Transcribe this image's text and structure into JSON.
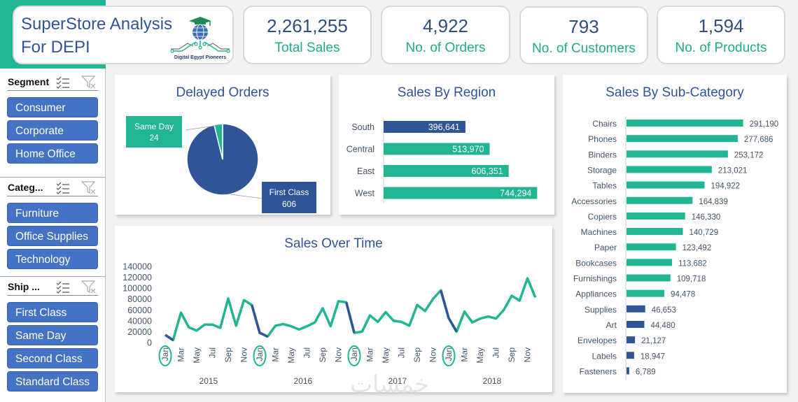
{
  "header": {
    "title_line1": "SuperStore Analysis",
    "title_line2": "For DEPI",
    "logo_caption": "Digital Egypt Pioneers",
    "logo_icon": "graduation-globe-circuit-logo"
  },
  "kpis": [
    {
      "value": "2,261,255",
      "label": "Total Sales"
    },
    {
      "value": "4,922",
      "label": "No. of Orders"
    },
    {
      "value": "793",
      "label": "No. of Customers"
    },
    {
      "value": "1,594",
      "label": "No. of Products"
    }
  ],
  "slicers": [
    {
      "title": "Segment",
      "items": [
        "Consumer",
        "Corporate",
        "Home Office"
      ]
    },
    {
      "title": "Categ...",
      "items": [
        "Furniture",
        "Office Supplies",
        "Technology"
      ]
    },
    {
      "title": "Ship ...",
      "items": [
        "First Class",
        "Same Day",
        "Second Class",
        "Standard Class"
      ]
    }
  ],
  "icons": {
    "multi_select": "multi-select-icon",
    "clear_filter": "clear-filter-icon"
  },
  "colors": {
    "teal": "#21b593",
    "navy": "#2f5597",
    "slicer_blue": "#4472c4",
    "title_blue": "#2f5597"
  },
  "watermark": "خمسات",
  "chart_data": [
    {
      "type": "pie",
      "title": "Delayed Orders",
      "categories": [
        "First Class",
        "Same Day"
      ],
      "values": [
        606,
        24
      ],
      "labels": [
        {
          "name": "First Class",
          "value": "606"
        },
        {
          "name": "Same Day",
          "value": "24"
        }
      ],
      "colors": [
        "#2f5597",
        "#21b593"
      ]
    },
    {
      "type": "bar",
      "orientation": "horizontal",
      "title": "Sales By Region",
      "categories": [
        "South",
        "Central",
        "East",
        "West"
      ],
      "values": [
        396641,
        513970,
        606351,
        744294
      ],
      "value_labels": [
        "396,641",
        "513,970",
        "606,351",
        "744,294"
      ],
      "highlight": [
        "South"
      ],
      "xlim": [
        0,
        760000
      ]
    },
    {
      "type": "bar",
      "orientation": "horizontal",
      "title": "Sales By Sub-Category",
      "categories": [
        "Chairs",
        "Phones",
        "Binders",
        "Storage",
        "Tables",
        "Accessories",
        "Copiers",
        "Machines",
        "Paper",
        "Bookcases",
        "Furnishings",
        "Appliances",
        "Supplies",
        "Art",
        "Envelopes",
        "Labels",
        "Fasteners"
      ],
      "values": [
        291190,
        277686,
        253172,
        213021,
        194922,
        164839,
        146330,
        140729,
        123492,
        113682,
        109718,
        94478,
        46653,
        44480,
        21127,
        18947,
        6789
      ],
      "value_labels": [
        "291,190",
        "277,686",
        "253,172",
        "213,021",
        "194,922",
        "164,839",
        "146,330",
        "140,729",
        "123,492",
        "113,682",
        "109,718",
        "94,478",
        "46,653",
        "44,480",
        "21,127",
        "18,947",
        "6,789"
      ],
      "highlight_bottom": [
        "Supplies",
        "Art",
        "Envelopes",
        "Labels",
        "Fasteners"
      ],
      "xlim": [
        0,
        300000
      ]
    },
    {
      "type": "line",
      "title": "Sales Over Time",
      "xlabel": "",
      "ylabel": "",
      "ylim": [
        0,
        140000
      ],
      "yticks": [
        "0",
        "20000",
        "40000",
        "60000",
        "80000",
        "100000",
        "120000",
        "140000"
      ],
      "years": [
        "2015",
        "2016",
        "2017",
        "2018"
      ],
      "month_ticks": [
        "Jan",
        "Mar",
        "May",
        "Jul",
        "Sep",
        "Nov"
      ],
      "circled_tick": "Jan",
      "series": [
        {
          "name": "Sales",
          "values": [
            14000,
            4500,
            55000,
            28000,
            22000,
            33000,
            33000,
            27000,
            81000,
            31000,
            78000,
            69000,
            18000,
            11000,
            31000,
            34000,
            30000,
            24000,
            30000,
            37000,
            63000,
            30000,
            76000,
            74000,
            18000,
            20000,
            50000,
            38000,
            56000,
            40000,
            38000,
            31000,
            69000,
            58000,
            80000,
            96000,
            45000,
            20000,
            57000,
            37000,
            44000,
            48000,
            44000,
            60000,
            86000,
            77000,
            118000,
            83000
          ]
        }
      ],
      "dip_segments_navy": [
        [
          0,
          1
        ],
        [
          11,
          13
        ],
        [
          23,
          24
        ],
        [
          35,
          37
        ]
      ]
    }
  ]
}
